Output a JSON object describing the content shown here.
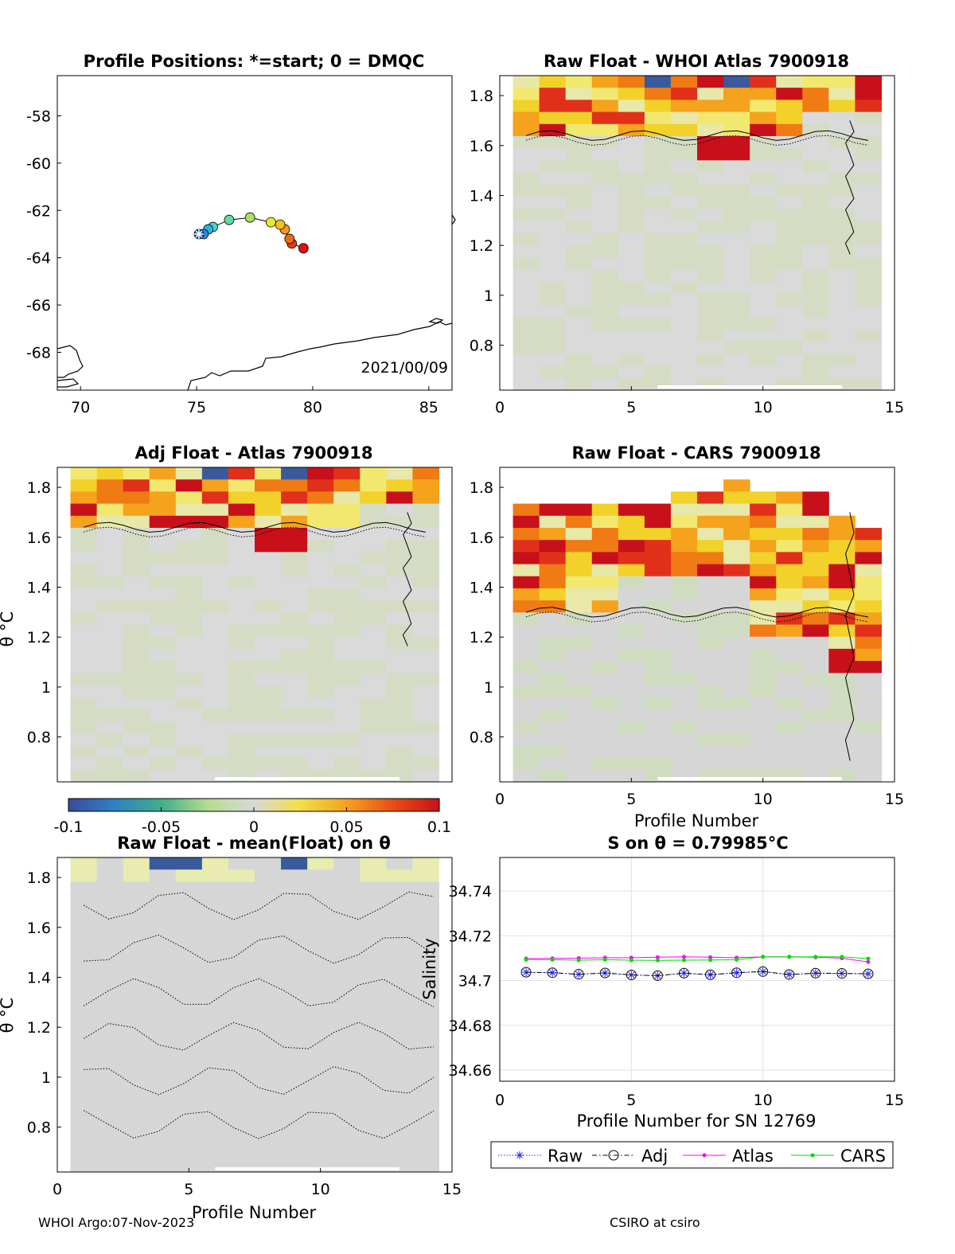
{
  "footer": {
    "left": "WHOI Argo:07-Nov-2023",
    "right": "CSIRO at csiro"
  },
  "colorbar": {
    "ticks": [
      "-0.1",
      "-0.05",
      "0",
      "0.05",
      "0.1"
    ],
    "range": [
      -0.1,
      0.1
    ],
    "colormap": "diverging-blue-green-grey-yellow-red"
  },
  "chart_data": [
    {
      "id": "map",
      "type": "scatter",
      "title": "Profile Positions: *=start; 0 = DMQC",
      "annotation": "2021/00/09",
      "xlim": [
        69,
        86
      ],
      "ylim": [
        -69.6,
        -56.3
      ],
      "xticks": [
        "70",
        "75",
        "80",
        "85"
      ],
      "yticks": [
        "-58",
        "-60",
        "-62",
        "-64",
        "-66",
        "-68"
      ],
      "points": [
        {
          "lon": 75.1,
          "lat": -63.0,
          "color": "#1a4fc0",
          "marker": "star"
        },
        {
          "lon": 75.3,
          "lat": -63.0,
          "color": "#2a8ad8"
        },
        {
          "lon": 75.5,
          "lat": -62.8,
          "color": "#29b4e0"
        },
        {
          "lon": 75.7,
          "lat": -62.7,
          "color": "#3fd6d0"
        },
        {
          "lon": 76.4,
          "lat": -62.4,
          "color": "#5fdca0"
        },
        {
          "lon": 77.3,
          "lat": -62.3,
          "color": "#a8e060"
        },
        {
          "lon": 78.2,
          "lat": -62.5,
          "color": "#e8e830"
        },
        {
          "lon": 78.6,
          "lat": -62.6,
          "color": "#f5c020"
        },
        {
          "lon": 78.8,
          "lat": -62.8,
          "color": "#f59a18"
        },
        {
          "lon": 79.0,
          "lat": -63.2,
          "color": "#ef6a10"
        },
        {
          "lon": 79.1,
          "lat": -63.4,
          "color": "#e63a10"
        },
        {
          "lon": 79.6,
          "lat": -63.6,
          "color": "#e21010"
        }
      ]
    },
    {
      "id": "raw-whoi",
      "type": "heatmap",
      "title": "Raw Float - WHOI Atlas  7900918",
      "xlim": [
        0,
        15
      ],
      "ylim": [
        0.62,
        1.88
      ],
      "xticks": [
        "0",
        "5",
        "10",
        "15"
      ],
      "yticks": [
        "1.8",
        "1.6",
        "1.4",
        "1.2",
        "1",
        "0.8"
      ]
    },
    {
      "id": "adj-atlas",
      "type": "heatmap",
      "title": "Adj Float - Atlas  7900918",
      "ylabel": "θ °C",
      "xlim": [
        0,
        15
      ],
      "ylim": [
        0.62,
        1.88
      ],
      "yticks": [
        "1.8",
        "1.6",
        "1.4",
        "1.2",
        "1",
        "0.8"
      ]
    },
    {
      "id": "raw-cars",
      "type": "heatmap",
      "title": "Raw Float - CARS  7900918",
      "xlabel": "Profile Number",
      "xlim": [
        0,
        15
      ],
      "ylim": [
        0.62,
        1.88
      ],
      "xticks": [
        "0",
        "5",
        "10",
        "15"
      ],
      "yticks": [
        "1.8",
        "1.6",
        "1.4",
        "1.2",
        "1",
        "0.8"
      ]
    },
    {
      "id": "raw-mean",
      "type": "heatmap",
      "title": "Raw Float - mean(Float) on θ",
      "xlabel": "Profile Number",
      "ylabel": "θ °C",
      "xlim": [
        0,
        15
      ],
      "ylim": [
        0.62,
        1.88
      ],
      "xticks": [
        "0",
        "5",
        "10",
        "15"
      ],
      "yticks": [
        "1.8",
        "1.6",
        "1.4",
        "1.2",
        "1",
        "0.8"
      ]
    },
    {
      "id": "salinity",
      "type": "line",
      "title": "S on θ = 0.79985°C",
      "xlabel": "Profile Number for SN 12769",
      "ylabel": "Salinity",
      "xlim": [
        0,
        15
      ],
      "ylim": [
        34.655,
        34.755
      ],
      "xticks": [
        "0",
        "5",
        "10",
        "15"
      ],
      "yticks": [
        "34.74",
        "34.72",
        "34.7",
        "34.68",
        "34.66"
      ],
      "grid": true,
      "legend": "bottom",
      "x": [
        1,
        2,
        3,
        4,
        5,
        6,
        7,
        8,
        9,
        10,
        11,
        12,
        13,
        14
      ],
      "series": [
        {
          "name": "Raw",
          "color": "#2a2aff",
          "style": "dotted-star",
          "values": [
            34.7037,
            34.7035,
            34.7028,
            34.7034,
            34.7025,
            34.7022,
            34.7033,
            34.7026,
            34.7035,
            34.704,
            34.7027,
            34.7033,
            34.7032,
            34.703
          ]
        },
        {
          "name": "Adj",
          "color": "#000000",
          "style": "dashdot-circle",
          "values": [
            34.7037,
            34.7035,
            34.7028,
            34.7034,
            34.7025,
            34.7022,
            34.7033,
            34.7026,
            34.7035,
            34.704,
            34.7027,
            34.7033,
            34.7032,
            34.703
          ]
        },
        {
          "name": "Atlas",
          "color": "#ff00ff",
          "style": "solid-dot",
          "values": [
            34.7098,
            34.7099,
            34.71,
            34.7102,
            34.7102,
            34.7104,
            34.7106,
            34.7104,
            34.7102,
            34.7106,
            34.7106,
            34.7104,
            34.71,
            34.7083
          ]
        },
        {
          "name": "CARS",
          "color": "#00dd00",
          "style": "solid-dot",
          "values": [
            34.7093,
            34.7093,
            34.7091,
            34.7093,
            34.7091,
            34.709,
            34.7091,
            34.7092,
            34.7093,
            34.7106,
            34.7106,
            34.7106,
            34.7106,
            34.7098
          ]
        }
      ]
    }
  ]
}
